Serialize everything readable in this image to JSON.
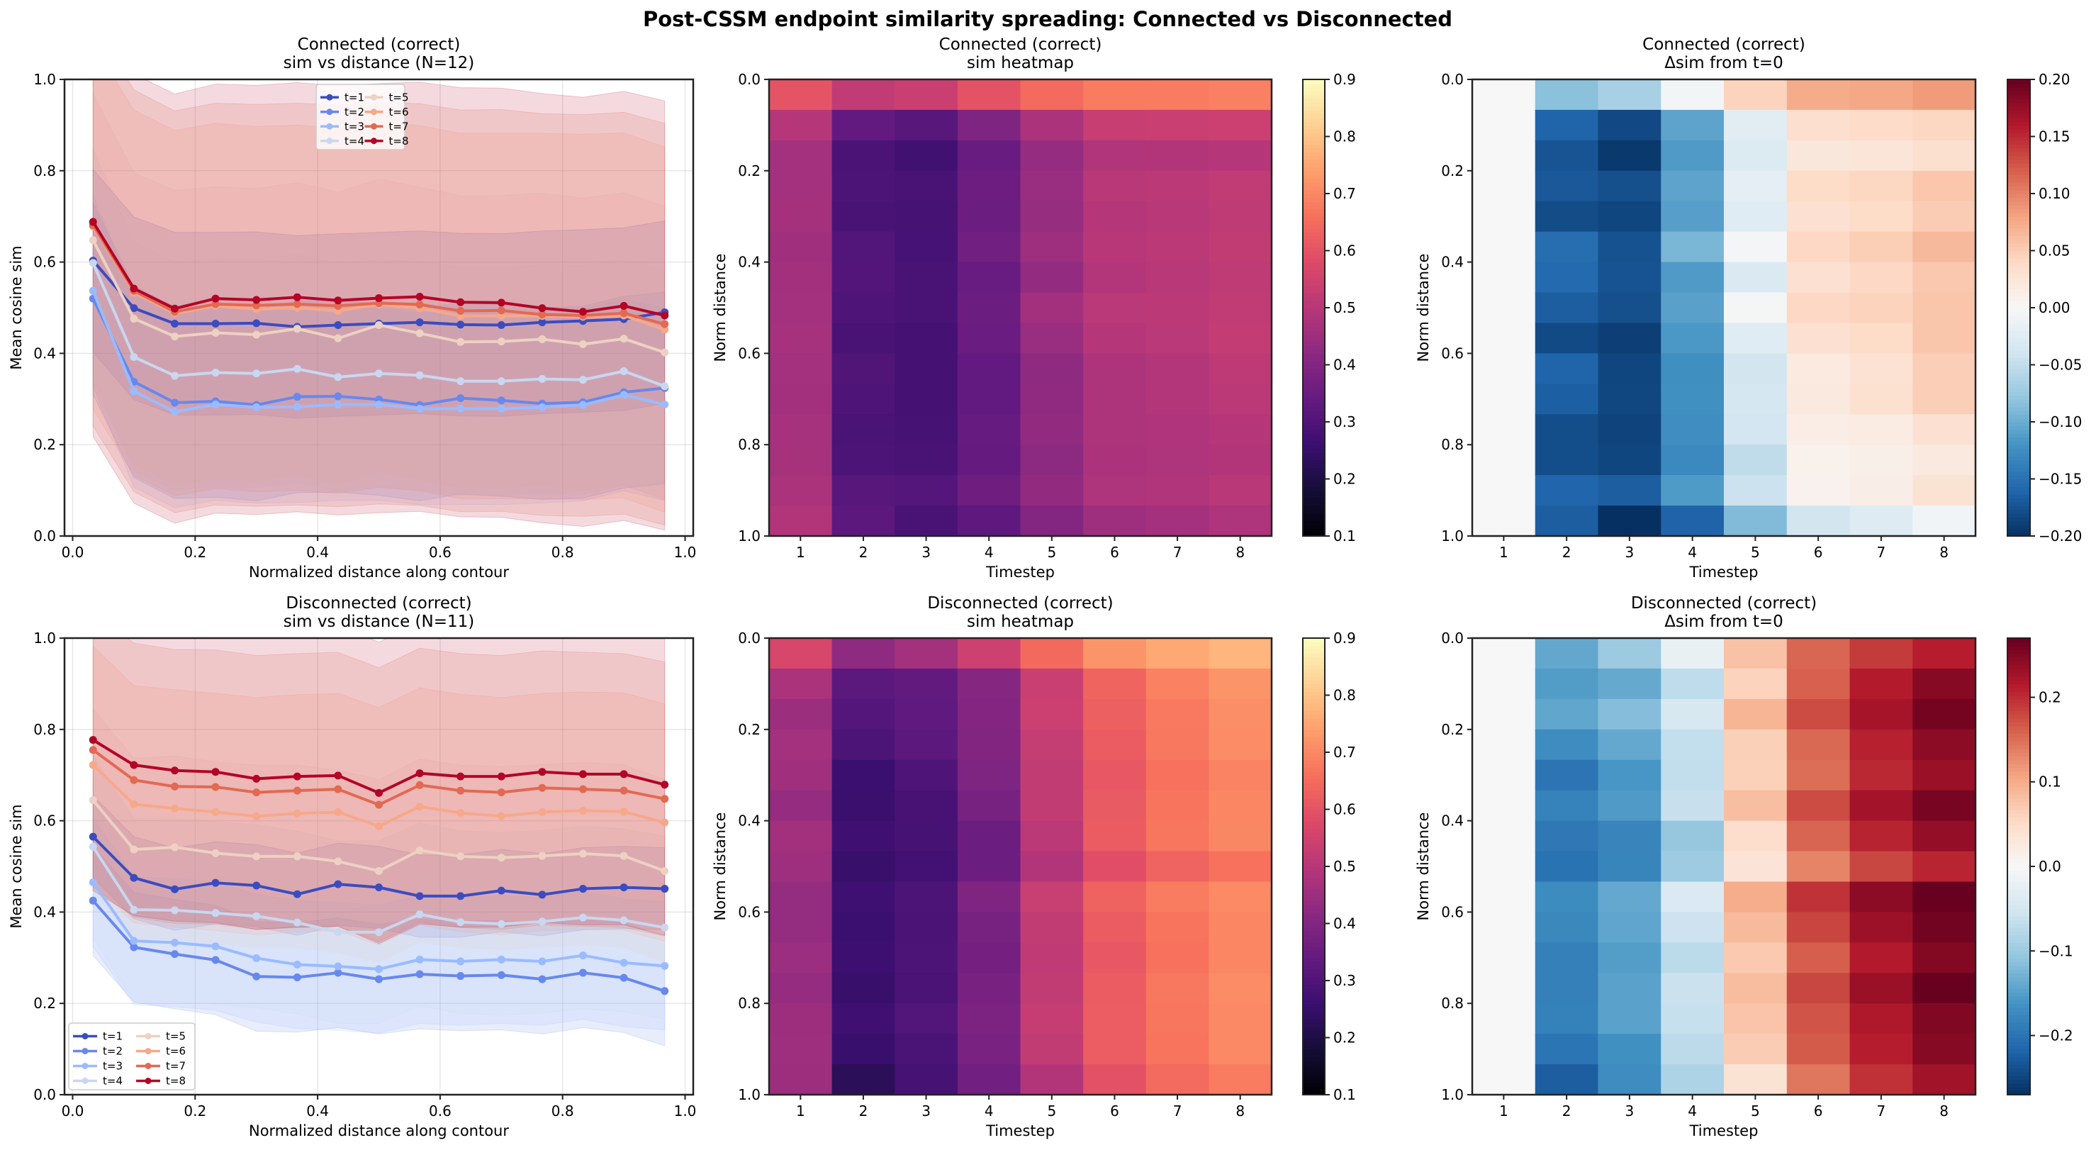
{
  "figure": {
    "title": "Post-CSSM endpoint similarity spreading: Connected vs Disconnected"
  },
  "series_colors": {
    "t=1": "#3b4cc0",
    "t=2": "#6788ee",
    "t=3": "#9abbff",
    "t=4": "#c9d7f0",
    "t=5": "#edd1c2",
    "t=6": "#f7a889",
    "t=7": "#e26952",
    "t=8": "#b40426"
  },
  "chart_data": [
    {
      "id": "connected-lines",
      "type": "line",
      "title": [
        "Connected (correct)",
        "sim vs distance (N=12)"
      ],
      "xlabel": "Normalized distance along contour",
      "ylabel": "Mean cosine sim",
      "xlim": [
        -0.0133,
        1.0133
      ],
      "ylim": [
        0.0,
        1.0
      ],
      "xticks": [
        0.0,
        0.2,
        0.4,
        0.6,
        0.8,
        1.0
      ],
      "xtick_labels": [
        "0.0",
        "0.2",
        "0.4",
        "0.6",
        "0.8",
        "1.0"
      ],
      "yticks": [
        0.0,
        0.2,
        0.4,
        0.6,
        0.8,
        1.0
      ],
      "ytick_labels": [
        "0.0",
        "0.2",
        "0.4",
        "0.6",
        "0.8",
        "1.0"
      ],
      "grid": true,
      "legend_position": "upper-center",
      "legend_columns": 2,
      "x": [
        0.0333,
        0.1,
        0.1667,
        0.2333,
        0.3,
        0.3667,
        0.4333,
        0.5,
        0.5667,
        0.6333,
        0.7,
        0.7667,
        0.8333,
        0.9,
        0.9667
      ],
      "series": [
        {
          "name": "t=1",
          "values": [
            0.603,
            0.499,
            0.465,
            0.465,
            0.466,
            0.458,
            0.462,
            0.465,
            0.468,
            0.463,
            0.462,
            0.468,
            0.471,
            0.475,
            0.49
          ],
          "band": 0.2
        },
        {
          "name": "t=2",
          "values": [
            0.52,
            0.338,
            0.292,
            0.295,
            0.287,
            0.305,
            0.306,
            0.299,
            0.287,
            0.302,
            0.297,
            0.29,
            0.293,
            0.315,
            0.324
          ],
          "band": 0.21
        },
        {
          "name": "t=3",
          "values": [
            0.537,
            0.317,
            0.272,
            0.288,
            0.282,
            0.283,
            0.288,
            0.288,
            0.279,
            0.279,
            0.279,
            0.282,
            0.287,
            0.309,
            0.288
          ],
          "band": 0.21
        },
        {
          "name": "t=4",
          "values": [
            0.598,
            0.392,
            0.351,
            0.358,
            0.356,
            0.366,
            0.348,
            0.356,
            0.352,
            0.339,
            0.339,
            0.344,
            0.342,
            0.361,
            0.328
          ],
          "band": 0.25
        },
        {
          "name": "t=5",
          "values": [
            0.648,
            0.476,
            0.437,
            0.445,
            0.441,
            0.454,
            0.433,
            0.462,
            0.444,
            0.425,
            0.426,
            0.431,
            0.42,
            0.432,
            0.402
          ],
          "band": 0.32
        },
        {
          "name": "t=6",
          "values": [
            0.678,
            0.533,
            0.488,
            0.504,
            0.497,
            0.5,
            0.493,
            0.507,
            0.499,
            0.482,
            0.482,
            0.482,
            0.48,
            0.483,
            0.452
          ],
          "band": 0.4
        },
        {
          "name": "t=7",
          "values": [
            0.681,
            0.537,
            0.491,
            0.508,
            0.505,
            0.508,
            0.504,
            0.51,
            0.507,
            0.493,
            0.494,
            0.485,
            0.483,
            0.488,
            0.464
          ],
          "band": 0.44
        },
        {
          "name": "t=8",
          "values": [
            0.688,
            0.542,
            0.498,
            0.52,
            0.517,
            0.523,
            0.516,
            0.521,
            0.524,
            0.512,
            0.511,
            0.499,
            0.491,
            0.504,
            0.483
          ],
          "band": 0.47
        }
      ]
    },
    {
      "id": "connected-heatmap",
      "type": "heatmap",
      "title": [
        "Connected (correct)",
        "sim heatmap"
      ],
      "xlabel": "Timestep",
      "ylabel": "Norm distance",
      "colormap": "magma",
      "clim": [
        0.1,
        0.9
      ],
      "colorbar_ticks": [
        "0.1",
        "0.2",
        "0.3",
        "0.4",
        "0.5",
        "0.6",
        "0.7",
        "0.8",
        "0.9"
      ],
      "xtick_labels": [
        "1",
        "2",
        "3",
        "4",
        "5",
        "6",
        "7",
        "8"
      ],
      "ytick_labels": [
        "0.0",
        "0.2",
        "0.4",
        "0.6",
        "0.8",
        "1.0"
      ],
      "source": "connected-lines"
    },
    {
      "id": "connected-delta",
      "type": "heatmap",
      "title": [
        "Connected (correct)",
        "Δsim from t=0"
      ],
      "xlabel": "Timestep",
      "ylabel": "Norm distance",
      "colormap": "RdBu_r",
      "clim": [
        -0.2,
        0.2
      ],
      "colorbar_ticks": [
        "−0.20",
        "−0.15",
        "−0.10",
        "−0.05",
        "0.00",
        "0.05",
        "0.10",
        "0.15",
        "0.20"
      ],
      "colorbar_tick_values": [
        -0.2,
        -0.15,
        -0.1,
        -0.05,
        0.0,
        0.05,
        0.1,
        0.15,
        0.2
      ],
      "xtick_labels": [
        "1",
        "2",
        "3",
        "4",
        "5",
        "6",
        "7",
        "8"
      ],
      "ytick_labels": [
        "0.0",
        "0.2",
        "0.4",
        "0.6",
        "0.8",
        "1.0"
      ],
      "source": "connected-lines",
      "delta_from_first": true
    },
    {
      "id": "disconnected-lines",
      "type": "line",
      "title": [
        "Disconnected (correct)",
        "sim vs distance (N=11)"
      ],
      "xlabel": "Normalized distance along contour",
      "ylabel": "Mean cosine sim",
      "xlim": [
        -0.0133,
        1.0133
      ],
      "ylim": [
        0.0,
        1.0
      ],
      "xticks": [
        0.0,
        0.2,
        0.4,
        0.6,
        0.8,
        1.0
      ],
      "xtick_labels": [
        "0.0",
        "0.2",
        "0.4",
        "0.6",
        "0.8",
        "1.0"
      ],
      "yticks": [
        0.0,
        0.2,
        0.4,
        0.6,
        0.8,
        1.0
      ],
      "ytick_labels": [
        "0.0",
        "0.2",
        "0.4",
        "0.6",
        "0.8",
        "1.0"
      ],
      "grid": true,
      "legend_position": "lower-left",
      "legend_columns": 2,
      "x": [
        0.0333,
        0.1,
        0.1667,
        0.2333,
        0.3,
        0.3667,
        0.4333,
        0.5,
        0.5667,
        0.6333,
        0.7,
        0.7667,
        0.8333,
        0.9,
        0.9667
      ],
      "series": [
        {
          "name": "t=1",
          "values": [
            0.565,
            0.475,
            0.45,
            0.464,
            0.458,
            0.439,
            0.461,
            0.454,
            0.435,
            0.435,
            0.447,
            0.438,
            0.451,
            0.454,
            0.451
          ],
          "band": 0.09
        },
        {
          "name": "t=2",
          "values": [
            0.425,
            0.323,
            0.308,
            0.295,
            0.259,
            0.257,
            0.267,
            0.253,
            0.264,
            0.26,
            0.262,
            0.253,
            0.267,
            0.256,
            0.227
          ],
          "band": 0.12
        },
        {
          "name": "t=3",
          "values": [
            0.465,
            0.337,
            0.333,
            0.325,
            0.299,
            0.285,
            0.281,
            0.275,
            0.296,
            0.292,
            0.296,
            0.292,
            0.305,
            0.289,
            0.282
          ],
          "band": 0.14
        },
        {
          "name": "t=4",
          "values": [
            0.543,
            0.405,
            0.404,
            0.398,
            0.391,
            0.377,
            0.356,
            0.356,
            0.395,
            0.378,
            0.374,
            0.379,
            0.388,
            0.382,
            0.366
          ],
          "band": 0.2
        },
        {
          "name": "t=5",
          "values": [
            0.645,
            0.537,
            0.542,
            0.529,
            0.522,
            0.522,
            0.511,
            0.49,
            0.535,
            0.522,
            0.519,
            0.523,
            0.528,
            0.523,
            0.49
          ],
          "band": 0.2
        },
        {
          "name": "t=6",
          "values": [
            0.722,
            0.636,
            0.627,
            0.619,
            0.61,
            0.616,
            0.619,
            0.588,
            0.631,
            0.617,
            0.61,
            0.619,
            0.622,
            0.62,
            0.596
          ],
          "band": 0.26
        },
        {
          "name": "t=7",
          "values": [
            0.755,
            0.689,
            0.675,
            0.674,
            0.662,
            0.666,
            0.669,
            0.635,
            0.678,
            0.666,
            0.662,
            0.672,
            0.669,
            0.666,
            0.648
          ],
          "band": 0.3
        },
        {
          "name": "t=8",
          "values": [
            0.777,
            0.722,
            0.71,
            0.707,
            0.692,
            0.697,
            0.699,
            0.661,
            0.704,
            0.697,
            0.697,
            0.707,
            0.702,
            0.702,
            0.679
          ],
          "band": 0.33
        }
      ]
    },
    {
      "id": "disconnected-heatmap",
      "type": "heatmap",
      "title": [
        "Disconnected (correct)",
        "sim heatmap"
      ],
      "xlabel": "Timestep",
      "ylabel": "Norm distance",
      "colormap": "magma",
      "clim": [
        0.1,
        0.9
      ],
      "colorbar_ticks": [
        "0.1",
        "0.2",
        "0.3",
        "0.4",
        "0.5",
        "0.6",
        "0.7",
        "0.8",
        "0.9"
      ],
      "xtick_labels": [
        "1",
        "2",
        "3",
        "4",
        "5",
        "6",
        "7",
        "8"
      ],
      "ytick_labels": [
        "0.0",
        "0.2",
        "0.4",
        "0.6",
        "0.8",
        "1.0"
      ],
      "source": "disconnected-lines"
    },
    {
      "id": "disconnected-delta",
      "type": "heatmap",
      "title": [
        "Disconnected (correct)",
        "Δsim from t=0"
      ],
      "xlabel": "Timestep",
      "ylabel": "Norm distance",
      "colormap": "RdBu_r",
      "clim": [
        -0.27,
        0.27
      ],
      "colorbar_ticks": [
        "−0.2",
        "−0.1",
        "0.0",
        "0.1",
        "0.2"
      ],
      "colorbar_tick_values": [
        -0.2,
        -0.1,
        0.0,
        0.1,
        0.2
      ],
      "xtick_labels": [
        "1",
        "2",
        "3",
        "4",
        "5",
        "6",
        "7",
        "8"
      ],
      "ytick_labels": [
        "0.0",
        "0.2",
        "0.4",
        "0.6",
        "0.8",
        "1.0"
      ],
      "source": "disconnected-lines",
      "delta_from_first": true
    }
  ]
}
